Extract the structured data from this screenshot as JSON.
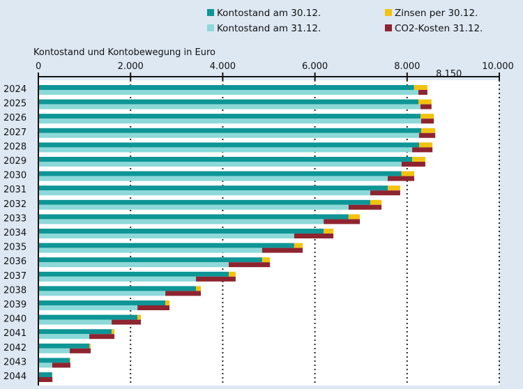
{
  "chart_data": {
    "type": "bar",
    "orientation": "horizontal",
    "title": "",
    "xlabel": "Kontostand und Kontobewegung in Euro",
    "ylabel": "",
    "xlim": [
      0,
      10000
    ],
    "x_ticks": [
      0,
      2000,
      4000,
      6000,
      8000,
      10000
    ],
    "x_tick_labels": [
      "0",
      "2.000",
      "4.000",
      "6.000",
      "8.000",
      "10.000"
    ],
    "grid": "vertical dotted lines at ticks",
    "legend_position": "top-right",
    "annotations": [
      {
        "text": "8.150",
        "value": 8150,
        "category": "2024"
      }
    ],
    "categories": [
      "2024",
      "2025",
      "2026",
      "2027",
      "2028",
      "2029",
      "2030",
      "2031",
      "2032",
      "2033",
      "2034",
      "2035",
      "2036",
      "2037",
      "2038",
      "2039",
      "2040",
      "2041",
      "2042",
      "2043",
      "2044"
    ],
    "series": [
      {
        "name": "Kontostand am 30.12.",
        "color": "#0e9596",
        "values": [
          8150,
          8245,
          8290,
          8305,
          8260,
          8110,
          7880,
          7580,
          7200,
          6730,
          6190,
          5550,
          4855,
          4130,
          3420,
          2755,
          2150,
          1590,
          1105,
          680,
          300
        ]
      },
      {
        "name": "Zinsen per 30.12.",
        "color": "#f2c20f",
        "values": [
          290,
          285,
          290,
          305,
          290,
          285,
          275,
          270,
          245,
          245,
          210,
          185,
          170,
          150,
          105,
          90,
          75,
          60,
          30,
          15,
          5
        ]
      },
      {
        "name": "Kontostand am 31.12.",
        "color": "#8dd8d8",
        "values": [
          8245,
          8290,
          8305,
          8260,
          8110,
          7880,
          7580,
          7200,
          6730,
          6190,
          5550,
          4855,
          4130,
          3420,
          2755,
          2150,
          1590,
          1105,
          680,
          300,
          0
        ]
      },
      {
        "name": "CO2-Kosten 31.12.",
        "color": "#8e2430",
        "values": [
          195,
          240,
          275,
          350,
          440,
          515,
          575,
          650,
          715,
          785,
          850,
          880,
          895,
          860,
          770,
          695,
          635,
          545,
          455,
          395,
          305
        ]
      }
    ]
  }
}
